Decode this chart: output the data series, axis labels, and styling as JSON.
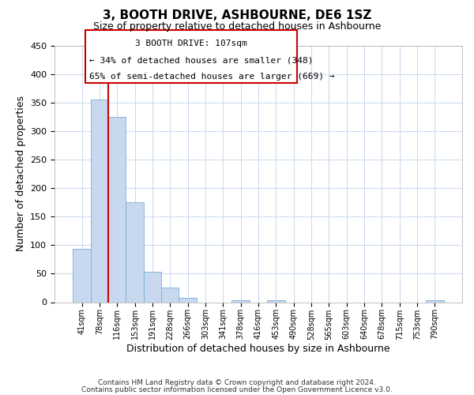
{
  "title": "3, BOOTH DRIVE, ASHBOURNE, DE6 1SZ",
  "subtitle": "Size of property relative to detached houses in Ashbourne",
  "xlabel": "Distribution of detached houses by size in Ashbourne",
  "ylabel": "Number of detached properties",
  "bar_labels": [
    "41sqm",
    "78sqm",
    "116sqm",
    "153sqm",
    "191sqm",
    "228sqm",
    "266sqm",
    "303sqm",
    "341sqm",
    "378sqm",
    "416sqm",
    "453sqm",
    "490sqm",
    "528sqm",
    "565sqm",
    "603sqm",
    "640sqm",
    "678sqm",
    "715sqm",
    "753sqm",
    "790sqm"
  ],
  "bar_values": [
    93,
    355,
    325,
    175,
    53,
    25,
    8,
    0,
    0,
    4,
    0,
    4,
    0,
    0,
    0,
    0,
    0,
    0,
    0,
    0,
    4
  ],
  "bar_color": "#c8d8ee",
  "bar_edge_color": "#7aaed6",
  "vline_x_index": 1,
  "vline_color": "#cc0000",
  "annotation_line1": "3 BOOTH DRIVE: 107sqm",
  "annotation_line2": "← 34% of detached houses are smaller (348)",
  "annotation_line3": "65% of semi-detached houses are larger (669) →",
  "ylim": [
    0,
    450
  ],
  "yticks": [
    0,
    50,
    100,
    150,
    200,
    250,
    300,
    350,
    400,
    450
  ],
  "footer_line1": "Contains HM Land Registry data © Crown copyright and database right 2024.",
  "footer_line2": "Contains public sector information licensed under the Open Government Licence v3.0.",
  "background_color": "#ffffff",
  "grid_color": "#c8d8ee",
  "title_fontsize": 11,
  "subtitle_fontsize": 9
}
